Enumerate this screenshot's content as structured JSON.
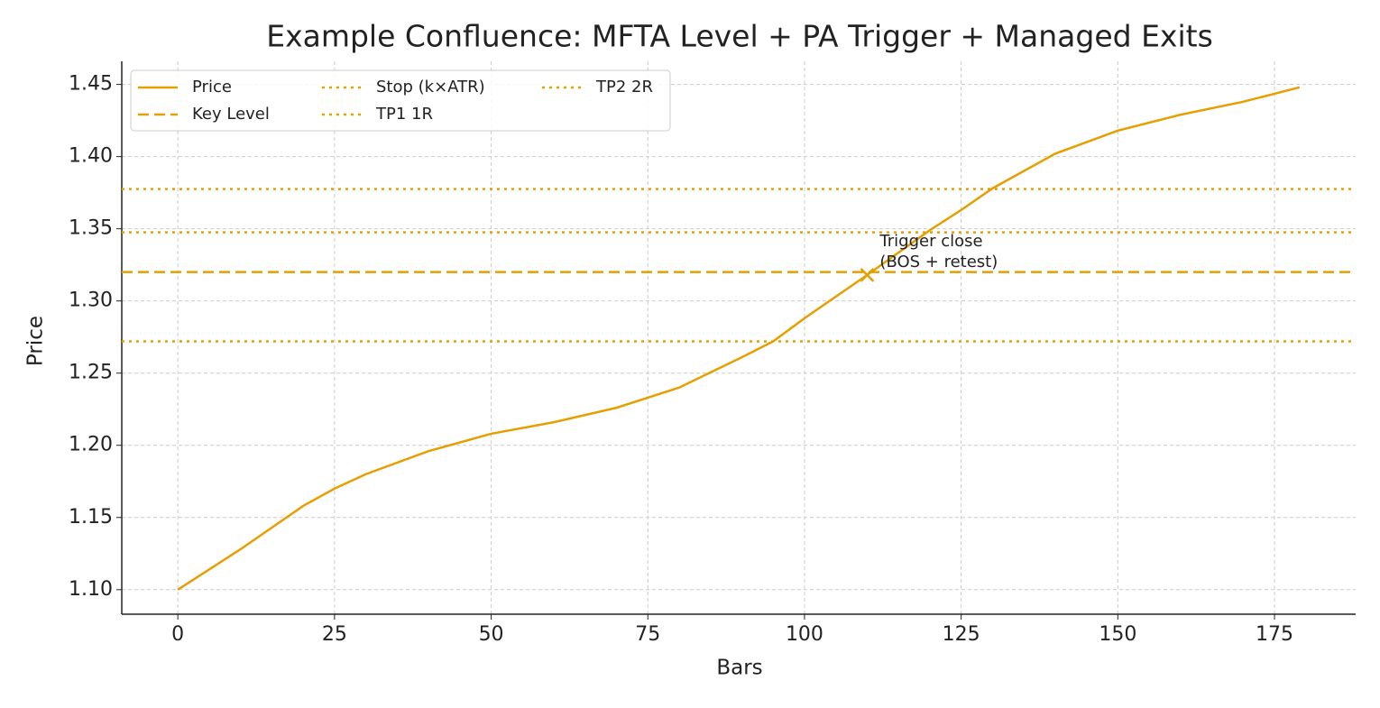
{
  "chart_data": {
    "type": "line",
    "title": "Example Confluence: MFTA Level + PA Trigger + Managed Exits",
    "x_label": "Bars",
    "y_label": "Price",
    "xlim": [
      -8.95,
      187.95
    ],
    "ylim": [
      1.083,
      1.466
    ],
    "xticks": [
      0,
      25,
      50,
      75,
      100,
      125,
      150,
      175
    ],
    "yticks": [
      {
        "value": 1.1,
        "label": "1.10"
      },
      1.15,
      {
        "value": 1.2,
        "label": "1.20"
      },
      1.25,
      {
        "value": 1.3,
        "label": "1.30"
      },
      1.35,
      {
        "value": 1.4,
        "label": "1.40"
      },
      1.45
    ],
    "grid": true,
    "legend": "upper left",
    "legend_columns": 3,
    "series": [
      {
        "name": "Price",
        "color": "#e69f00",
        "style": "solid",
        "x": [
          0,
          10,
          20,
          25,
          30,
          40,
          50,
          60,
          70,
          75,
          80,
          90,
          95,
          100,
          110,
          120,
          125,
          130,
          140,
          150,
          160,
          170,
          179
        ],
        "values": [
          1.1,
          1.128,
          1.158,
          1.17,
          1.18,
          1.196,
          1.208,
          1.216,
          1.226,
          1.233,
          1.24,
          1.261,
          1.272,
          1.288,
          1.318,
          1.349,
          1.363,
          1.378,
          1.402,
          1.418,
          1.429,
          1.438,
          1.448
        ]
      }
    ],
    "hlines": [
      {
        "name": "Key Level",
        "color": "#e69f00",
        "style": "dashed",
        "value": 1.32
      },
      {
        "name": "Stop (k×ATR)",
        "color": "#e69f00",
        "style": "dotted",
        "value": 1.272
      },
      {
        "name": "TP1 1R",
        "color": "#e69f00",
        "style": "dotted",
        "value": 1.3475
      },
      {
        "name": "TP2 2R",
        "color": "#e69f00",
        "style": "dotted",
        "value": 1.3775
      }
    ],
    "trigger": {
      "x": 110,
      "y": 1.318,
      "color": "#e69f00",
      "text": [
        "Trigger close",
        "(BOS + retest)"
      ]
    }
  }
}
